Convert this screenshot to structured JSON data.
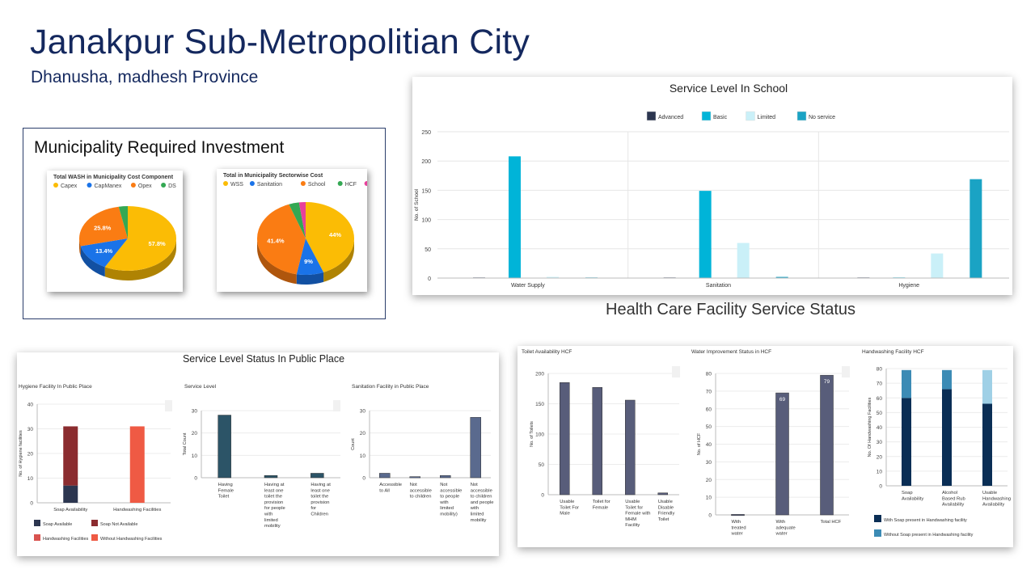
{
  "header": {
    "title": "Janakpur Sub-Metropolitian City",
    "subtitle": "Dhanusha, madhesh Province"
  },
  "investment": {
    "heading": "Municipality Required Investment"
  },
  "hcf_heading": "Health Care Facility Service Status",
  "public_heading": "Service Level Status In Public Place",
  "colors": {
    "navy": "#14285e",
    "capex": "#fbbc05",
    "capmanex": "#1a73e8",
    "opex": "#fa7c13",
    "ds": "#34a853",
    "pp": "#e8409b",
    "advanced": "#2c3650",
    "basic": "#00b4d8",
    "limited": "#caf0f8",
    "noservice": "#1aa3c4"
  },
  "chart_data": [
    {
      "id": "pie-cost-component",
      "type": "pie",
      "title": "Total WASH in Municipality Cost Component",
      "labels": [
        "Capex",
        "CapManex",
        "Opex",
        "DS"
      ],
      "values": [
        57.8,
        13.4,
        25.8,
        3.0
      ],
      "slice_labels": [
        "57.8%",
        "13.4%",
        "25.8%",
        ""
      ],
      "colors": [
        "#fbbc05",
        "#1a73e8",
        "#fa7c13",
        "#34a853"
      ]
    },
    {
      "id": "pie-sectorwise",
      "type": "pie",
      "title": "Total in Municipality Sectorwise Cost",
      "labels": [
        "WSS",
        "Sanitation",
        "School",
        "HCF",
        "PP"
      ],
      "values": [
        44.0,
        9.0,
        41.4,
        3.4,
        2.2
      ],
      "slice_labels": [
        "44%",
        "9%",
        "41.4%",
        "",
        ""
      ],
      "colors": [
        "#fbbc05",
        "#1a73e8",
        "#fa7c13",
        "#34a853",
        "#e8409b"
      ]
    },
    {
      "id": "school-service",
      "type": "bar",
      "title": "Service Level In School",
      "categories": [
        "Water Supply",
        "Sanitation",
        "Hygiene"
      ],
      "series": [
        {
          "name": "Advanced",
          "values": [
            1,
            1,
            1
          ],
          "color": "#2c3650"
        },
        {
          "name": "Basic",
          "values": [
            208,
            149,
            1
          ],
          "color": "#00b4d8"
        },
        {
          "name": "Limited",
          "values": [
            2,
            60,
            42
          ],
          "color": "#caf0f8"
        },
        {
          "name": "No service",
          "values": [
            1,
            2,
            169
          ],
          "color": "#1aa3c4"
        }
      ],
      "ylabel": "No. of School",
      "ylim": [
        0,
        250
      ],
      "yticks": [
        "0",
        "50",
        "100",
        "150",
        "200",
        "250"
      ]
    },
    {
      "id": "hygiene-public",
      "type": "bar",
      "title": "Hygiene Facility In Public Place",
      "categories": [
        "Soap Availability",
        "Handwashing Facilities"
      ],
      "series": [
        {
          "name": "Soap Available",
          "values": [
            7,
            0
          ],
          "color": "#2c3650"
        },
        {
          "name": "Soap Not Available",
          "values": [
            24,
            0
          ],
          "color": "#8b2c2f"
        },
        {
          "name": "Handwashing Facilities",
          "values": [
            0,
            0
          ],
          "color": "#d9534f"
        },
        {
          "name": "Without Handwashing Facilities",
          "values": [
            0,
            31
          ],
          "color": "#ef5a44"
        }
      ],
      "stacked": true,
      "ylabel": "No. of Hygiene facilities",
      "ylim": [
        0,
        40
      ],
      "yticks": [
        "0",
        "10",
        "20",
        "30",
        "40"
      ]
    },
    {
      "id": "service-level-public",
      "type": "bar",
      "title": "Service Level",
      "categories": [
        "Having Female Toilet",
        "Having at least one toilet the provision for people with limited mobility",
        "Having at least one toilet the provision for Children"
      ],
      "values": [
        28,
        1,
        2
      ],
      "ylabel": "Total Count",
      "ylim": [
        0,
        30
      ],
      "yticks": [
        "0",
        "10",
        "20",
        "30"
      ]
    },
    {
      "id": "sanitation-public",
      "type": "bar",
      "title": "Sanitation Facility in Public Place",
      "categories": [
        "Accessible to All",
        "Not accessible to children",
        "Not accessible to people with limited mobility)",
        "Not accessible to children and people with limited mobility"
      ],
      "values": [
        2,
        0.5,
        1,
        27
      ],
      "ylabel": "Count",
      "ylim": [
        0,
        30
      ],
      "yticks": [
        "0",
        "10",
        "20",
        "30"
      ]
    },
    {
      "id": "toilet-hcf",
      "type": "bar",
      "title": "Toilet Availability HCF",
      "categories": [
        "Usable Toilet For Male",
        "Toilet for Female",
        "Usable Toilet for Female with MHM Facility",
        "Usable Disable Friendly Toilet"
      ],
      "values": [
        185,
        177,
        156,
        3
      ],
      "ylabel": "No. of Toilets",
      "ylim": [
        0,
        200
      ],
      "yticks": [
        "0",
        "50",
        "100",
        "150",
        "200"
      ]
    },
    {
      "id": "water-hcf",
      "type": "bar",
      "title": "Water Improvement Status in HCF",
      "categories": [
        "With treated water",
        "With adequate water",
        "Total HCF"
      ],
      "values": [
        0.3,
        69,
        79
      ],
      "data_labels": [
        "",
        "69",
        "79"
      ],
      "ylabel": "No. of HCF",
      "ylim": [
        0,
        80
      ],
      "yticks": [
        "0",
        "10",
        "20",
        "30",
        "40",
        "50",
        "60",
        "70",
        "80"
      ]
    },
    {
      "id": "handwashing-hcf",
      "type": "bar",
      "title": "Handwashing Facility HCF",
      "categories": [
        "Soap Availability",
        "Alcohol Based Rub Availability",
        "Usable Handwashing Availability"
      ],
      "series": [
        {
          "name": "With Soap present in Handwashing facility",
          "values": [
            60,
            66,
            56
          ],
          "color": "#0a2e55"
        },
        {
          "name": "Without Soap present in Handwashing facility",
          "values": [
            19,
            13,
            23
          ],
          "colors": [
            "#3c8bb5",
            "#3c8bb5",
            "#9fd0e6"
          ]
        }
      ],
      "stacked": true,
      "ylabel": "No. Of Handwashing Facilities",
      "ylim": [
        0,
        80
      ],
      "yticks": [
        "0",
        "10",
        "20",
        "30",
        "40",
        "50",
        "60",
        "70",
        "80"
      ]
    }
  ]
}
